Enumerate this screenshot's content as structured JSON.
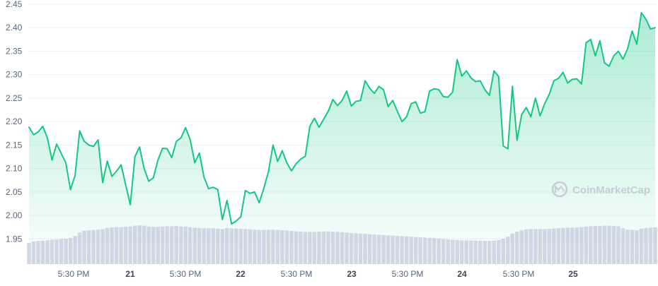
{
  "chart_data": {
    "type": "area",
    "title": "",
    "xlabel": "",
    "ylabel": "",
    "ylim": [
      1.9,
      2.45
    ],
    "y_ticks": [
      "2.45",
      "2.40",
      "2.35",
      "2.30",
      "2.25",
      "2.20",
      "2.15",
      "2.10",
      "2.05",
      "2.00",
      "1.95"
    ],
    "x_ticks": [
      {
        "label": "5:30 PM",
        "bold": false
      },
      {
        "label": "21",
        "bold": true
      },
      {
        "label": "5:30 PM",
        "bold": false
      },
      {
        "label": "22",
        "bold": true
      },
      {
        "label": "5:30 PM",
        "bold": false
      },
      {
        "label": "23",
        "bold": true
      },
      {
        "label": "5:30 PM",
        "bold": false
      },
      {
        "label": "24",
        "bold": true
      },
      {
        "label": "5:30 PM",
        "bold": false
      },
      {
        "label": "25",
        "bold": true
      }
    ],
    "grid": true,
    "price": [
      2.188,
      2.172,
      2.178,
      2.19,
      2.165,
      2.118,
      2.152,
      2.132,
      2.112,
      2.055,
      2.085,
      2.18,
      2.158,
      2.15,
      2.147,
      2.161,
      2.07,
      2.116,
      2.083,
      2.094,
      2.108,
      2.065,
      2.023,
      2.125,
      2.146,
      2.1,
      2.073,
      2.08,
      2.118,
      2.143,
      2.142,
      2.123,
      2.158,
      2.165,
      2.187,
      2.162,
      2.112,
      2.133,
      2.082,
      2.057,
      2.06,
      2.055,
      1.991,
      2.032,
      1.982,
      1.988,
      1.997,
      2.053,
      2.047,
      2.05,
      2.027,
      2.058,
      2.093,
      2.15,
      2.115,
      2.138,
      2.112,
      2.095,
      2.11,
      2.12,
      2.126,
      2.19,
      2.207,
      2.188,
      2.205,
      2.222,
      2.247,
      2.234,
      2.245,
      2.265,
      2.233,
      2.243,
      2.245,
      2.287,
      2.271,
      2.26,
      2.275,
      2.268,
      2.232,
      2.245,
      2.222,
      2.2,
      2.21,
      2.238,
      2.242,
      2.218,
      2.221,
      2.265,
      2.27,
      2.268,
      2.253,
      2.252,
      2.263,
      2.332,
      2.297,
      2.308,
      2.293,
      2.285,
      2.287,
      2.268,
      2.256,
      2.308,
      2.296,
      2.148,
      2.142,
      2.275,
      2.16,
      2.215,
      2.23,
      2.21,
      2.25,
      2.212,
      2.238,
      2.258,
      2.287,
      2.292,
      2.305,
      2.282,
      2.29,
      2.291,
      2.28,
      2.368,
      2.375,
      2.34,
      2.372,
      2.325,
      2.318,
      2.34,
      2.35,
      2.333,
      2.355,
      2.393,
      2.365,
      2.432,
      2.418,
      2.397,
      2.4
    ],
    "volume": [
      0.075,
      0.08,
      0.082,
      0.083,
      0.084,
      0.086,
      0.087,
      0.089,
      0.09,
      0.093,
      0.1,
      0.112,
      0.118,
      0.12,
      0.121,
      0.122,
      0.124,
      0.128,
      0.13,
      0.131,
      0.131,
      0.132,
      0.133,
      0.136,
      0.137,
      0.136,
      0.133,
      0.132,
      0.132,
      0.133,
      0.134,
      0.134,
      0.135,
      0.133,
      0.133,
      0.131,
      0.129,
      0.128,
      0.127,
      0.127,
      0.127,
      0.126,
      0.124,
      0.128,
      0.127,
      0.126,
      0.125,
      0.124,
      0.123,
      0.122,
      0.121,
      0.121,
      0.122,
      0.122,
      0.121,
      0.12,
      0.119,
      0.118,
      0.116,
      0.115,
      0.114,
      0.114,
      0.114,
      0.115,
      0.116,
      0.116,
      0.115,
      0.114,
      0.113,
      0.112,
      0.11,
      0.109,
      0.108,
      0.107,
      0.106,
      0.105,
      0.104,
      0.103,
      0.102,
      0.101,
      0.1,
      0.099,
      0.098,
      0.097,
      0.096,
      0.095,
      0.094,
      0.093,
      0.092,
      0.091,
      0.089,
      0.087,
      0.086,
      0.085,
      0.084,
      0.084,
      0.084,
      0.083,
      0.083,
      0.082,
      0.082,
      0.083,
      0.085,
      0.09,
      0.097,
      0.108,
      0.115,
      0.12,
      0.123,
      0.124,
      0.124,
      0.124,
      0.124,
      0.125,
      0.126,
      0.127,
      0.128,
      0.129,
      0.129,
      0.13,
      0.131,
      0.133,
      0.134,
      0.135,
      0.135,
      0.136,
      0.136,
      0.135,
      0.134,
      0.127,
      0.122,
      0.121,
      0.12,
      0.126,
      0.128,
      0.129,
      0.13
    ],
    "colors": {
      "line": "#16c784",
      "area_top": "#16c784",
      "volume": "#cfd6e4",
      "grid": "#eff2f5",
      "axis_text": "#58667e",
      "watermark": "#c8ced8"
    }
  },
  "watermark": {
    "text": "CoinMarketCap",
    "icon": "coinmarketcap-logo-icon"
  }
}
